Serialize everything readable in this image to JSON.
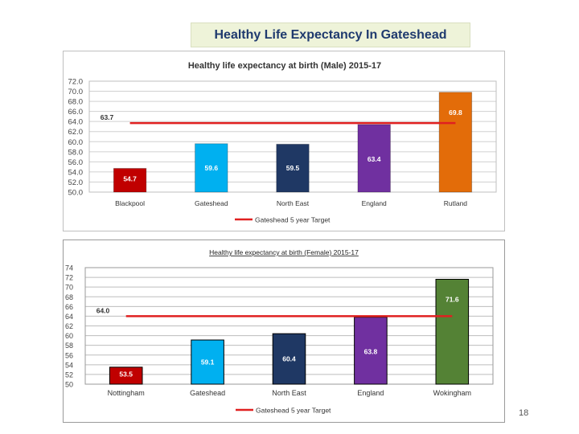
{
  "slide": {
    "title": "Healthy Life Expectancy In Gateshead",
    "page_number": "18"
  },
  "chart_data": [
    {
      "type": "bar",
      "title": "Healthy life expectancy at birth (Male) 2015-17",
      "categories": [
        "Blackpool",
        "Gateshead",
        "North East",
        "England",
        "Rutland"
      ],
      "values": [
        54.7,
        59.6,
        59.5,
        63.4,
        69.8
      ],
      "value_labels": [
        "54.7",
        "59.6",
        "59.5",
        "63.4",
        "69.8"
      ],
      "bar_colors": [
        "#c00000",
        "#00b0f0",
        "#1f3864",
        "#7030a0",
        "#e36c09"
      ],
      "ylim": [
        50,
        72
      ],
      "yticks": [
        "50.0",
        "52.0",
        "54.0",
        "56.0",
        "58.0",
        "60.0",
        "62.0",
        "64.0",
        "66.0",
        "68.0",
        "70.0",
        "72.0"
      ],
      "target": {
        "value": 63.7,
        "label": "63.7",
        "color": "#e02020"
      },
      "legend": "Gateshead 5 year Target",
      "legend_position": "bottom",
      "grid": true
    },
    {
      "type": "bar",
      "title": "Healthy life expectancy at birth (Female) 2015-17",
      "categories": [
        "Nottingham",
        "Gateshead",
        "North East",
        "England",
        "Wokingham"
      ],
      "values": [
        53.5,
        59.1,
        60.4,
        63.8,
        71.6
      ],
      "value_labels": [
        "53.5",
        "59.1",
        "60.4",
        "63.8",
        "71.6"
      ],
      "bar_colors": [
        "#c00000",
        "#00b0f0",
        "#1f3864",
        "#7030a0",
        "#548235"
      ],
      "ylim": [
        50,
        74
      ],
      "yticks": [
        "50",
        "52",
        "54",
        "56",
        "58",
        "60",
        "62",
        "64",
        "66",
        "68",
        "70",
        "72",
        "74"
      ],
      "target": {
        "value": 64.0,
        "label": "64.0",
        "color": "#e02020"
      },
      "legend": "Gateshead 5 year Target",
      "legend_position": "bottom",
      "grid": true
    }
  ]
}
